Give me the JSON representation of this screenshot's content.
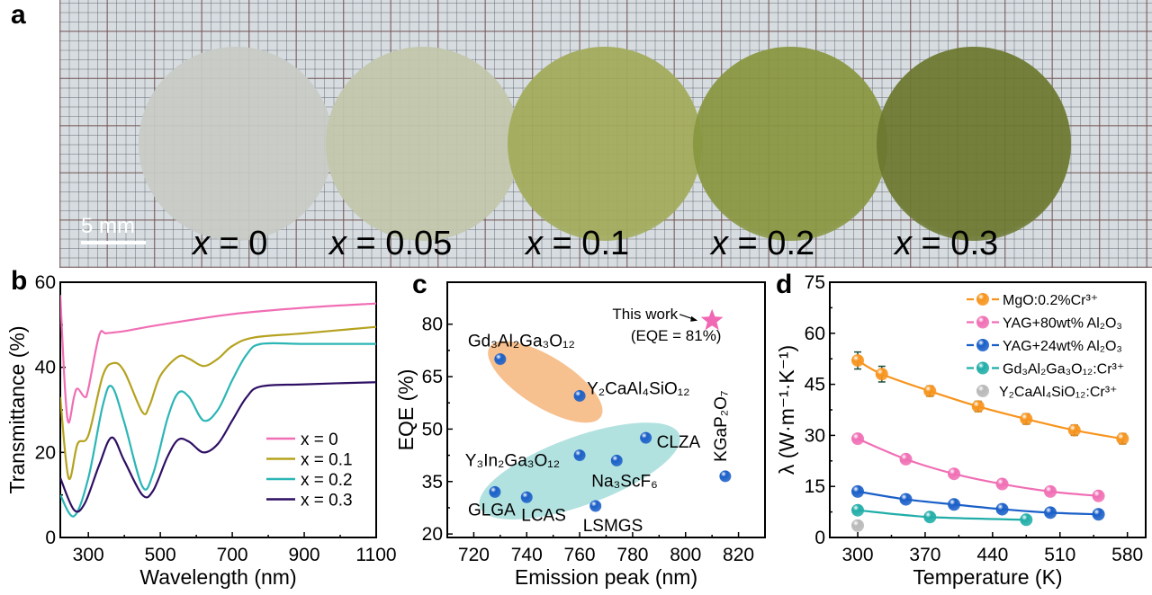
{
  "panel_a": {
    "label": "a",
    "scale_bar": "5 mm",
    "samples": [
      {
        "var": "x",
        "eq": " = 0",
        "color": "#c8cbc5"
      },
      {
        "var": "x",
        "eq": " = 0.05",
        "color": "#c2c7ab"
      },
      {
        "var": "x",
        "eq": " = 0.1",
        "color": "#a2ab5a"
      },
      {
        "var": "x",
        "eq": " = 0.2",
        "color": "#889640"
      },
      {
        "var": "x",
        "eq": " = 0.3",
        "color": "#6c782f"
      }
    ]
  },
  "chart_data": [
    {
      "panel": "b",
      "type": "line",
      "xlabel": "Wavelength (nm)",
      "ylabel": "Transmittance (%)",
      "xlim": [
        222,
        1100
      ],
      "ylim": [
        0,
        60
      ],
      "xticks": [
        300,
        500,
        700,
        900,
        1100
      ],
      "yticks": [
        0,
        20,
        40,
        60
      ],
      "legend": "right",
      "series": [
        {
          "name": "x = 0",
          "color": "#f06eb4",
          "points": [
            [
              222,
              57
            ],
            [
              235,
              35
            ],
            [
              245,
              27
            ],
            [
              260,
              33
            ],
            [
              270,
              35
            ],
            [
              290,
              33
            ],
            [
              300,
              35
            ],
            [
              330,
              47.5
            ],
            [
              350,
              48
            ],
            [
              400,
              48.5
            ],
            [
              500,
              50
            ],
            [
              700,
              52.5
            ],
            [
              900,
              54
            ],
            [
              1100,
              55
            ]
          ]
        },
        {
          "name": "x = 0.1",
          "color": "#b5a21f",
          "points": [
            [
              222,
              33
            ],
            [
              245,
              14
            ],
            [
              270,
              22
            ],
            [
              300,
              24
            ],
            [
              340,
              38
            ],
            [
              370,
              41
            ],
            [
              400,
              39
            ],
            [
              450,
              29.5
            ],
            [
              470,
              31
            ],
            [
              500,
              38
            ],
            [
              550,
              42.5
            ],
            [
              580,
              42
            ],
            [
              620,
              40.3
            ],
            [
              660,
              42
            ],
            [
              700,
              45
            ],
            [
              760,
              47
            ],
            [
              900,
              48
            ],
            [
              1100,
              49.5
            ]
          ]
        },
        {
          "name": "x = 0.2",
          "color": "#2bb5b5",
          "points": [
            [
              222,
              10
            ],
            [
              260,
              5
            ],
            [
              300,
              14
            ],
            [
              340,
              31
            ],
            [
              365,
              35.5
            ],
            [
              400,
              27
            ],
            [
              450,
              12
            ],
            [
              480,
              15
            ],
            [
              520,
              28
            ],
            [
              550,
              34
            ],
            [
              580,
              33
            ],
            [
              620,
              27.5
            ],
            [
              660,
              30
            ],
            [
              700,
              37
            ],
            [
              740,
              43
            ],
            [
              780,
              45.5
            ],
            [
              900,
              45.5
            ],
            [
              1100,
              45.5
            ]
          ]
        },
        {
          "name": "x = 0.3",
          "color": "#2e0f64",
          "points": [
            [
              222,
              14
            ],
            [
              260,
              6.5
            ],
            [
              290,
              8
            ],
            [
              330,
              17
            ],
            [
              365,
              23.5
            ],
            [
              400,
              18
            ],
            [
              450,
              10
            ],
            [
              480,
              11
            ],
            [
              520,
              19
            ],
            [
              550,
              23
            ],
            [
              580,
              22.5
            ],
            [
              620,
              20
            ],
            [
              660,
              22
            ],
            [
              700,
              27.5
            ],
            [
              740,
              33
            ],
            [
              780,
              35.5
            ],
            [
              900,
              36
            ],
            [
              1100,
              36.5
            ]
          ]
        }
      ]
    },
    {
      "panel": "c",
      "type": "scatter",
      "xlabel": "Emission peak (nm)",
      "ylabel": "EQE (%)",
      "xlim": [
        710,
        830
      ],
      "ylim": [
        19,
        92
      ],
      "xticks": [
        720,
        740,
        760,
        780,
        800,
        820
      ],
      "yticks": [
        20,
        35,
        50,
        65,
        80
      ],
      "groups": [
        {
          "color": "#f7c08f",
          "members": [
            "Gd₃Al₂Ga₃O₁₂",
            "Y₂CaAl₄SiO₁₂"
          ]
        },
        {
          "color": "#b2e2e0",
          "members": [
            "Y₃In₂Ga₃O₁₂",
            "CLZA",
            "Na₃ScF₆",
            "GLGA",
            "LCAS",
            "LSMGS"
          ]
        }
      ],
      "points": [
        {
          "label": "Gd₃Al₂Ga₃O₁₂",
          "x": 730,
          "y": 70
        },
        {
          "label": "Y₂CaAl₄SiO₁₂",
          "x": 760,
          "y": 59.5
        },
        {
          "label": "CLZA",
          "x": 785,
          "y": 47.5
        },
        {
          "label": "Y₃In₂Ga₃O₁₂",
          "x": 760,
          "y": 42.5
        },
        {
          "label": "Na₃ScF₆",
          "x": 774,
          "y": 41
        },
        {
          "label": "KGaP₂O₇",
          "x": 815,
          "y": 36.5
        },
        {
          "label": "GLGA",
          "x": 728,
          "y": 32
        },
        {
          "label": "LCAS",
          "x": 740,
          "y": 30.5
        },
        {
          "label": "LSMGS",
          "x": 766,
          "y": 28
        }
      ],
      "highlight": {
        "label": "This work",
        "note": "(EQE = 81%)",
        "x": 810,
        "y": 81,
        "color": "#f067b4"
      },
      "point_color": "#1a5fc8"
    },
    {
      "panel": "d",
      "type": "line",
      "xlabel": "Temperature (K)",
      "ylabel": "λ (W·m⁻¹·K⁻¹)",
      "xlim": [
        271,
        599
      ],
      "ylim": [
        0,
        75
      ],
      "xticks": [
        300,
        370,
        440,
        510,
        580
      ],
      "yticks": [
        0,
        15,
        30,
        45,
        60,
        75
      ],
      "legend": "top-right",
      "series": [
        {
          "name": "MgO:0.2%Cr³⁺",
          "color": "#f7941d",
          "points": [
            [
              300,
              52
            ],
            [
              325,
              48
            ],
            [
              375,
              43
            ],
            [
              425,
              38.5
            ],
            [
              475,
              34.8
            ],
            [
              525,
              31.5
            ],
            [
              575,
              29
            ]
          ],
          "errors": [
            2.5,
            2.3,
            1.5,
            1.5,
            1.5,
            1.5,
            1.5
          ]
        },
        {
          "name": "YAG+80wt% Al₂O₃",
          "color": "#f06eb4",
          "points": [
            [
              300,
              29
            ],
            [
              350,
              23
            ],
            [
              400,
              18.7
            ],
            [
              450,
              15.7
            ],
            [
              500,
              13.5
            ],
            [
              550,
              12.2
            ]
          ]
        },
        {
          "name": "YAG+24wt% Al₂O₃",
          "color": "#1a5fc8",
          "points": [
            [
              300,
              13.5
            ],
            [
              350,
              11.2
            ],
            [
              400,
              9.7
            ],
            [
              450,
              8.3
            ],
            [
              500,
              7.3
            ],
            [
              550,
              6.8
            ]
          ]
        },
        {
          "name": "Gd₃Al₂Ga₃O₁₂:Cr³⁺",
          "color": "#20ada8",
          "points": [
            [
              300,
              8
            ],
            [
              375,
              6
            ],
            [
              475,
              5.2
            ]
          ]
        },
        {
          "name": "Y₂CaAl₄SiO₁₂:Cr³⁺",
          "color": "#b8b8b8",
          "points": [
            [
              300,
              3.5
            ]
          ],
          "markers_only": true
        }
      ]
    }
  ]
}
